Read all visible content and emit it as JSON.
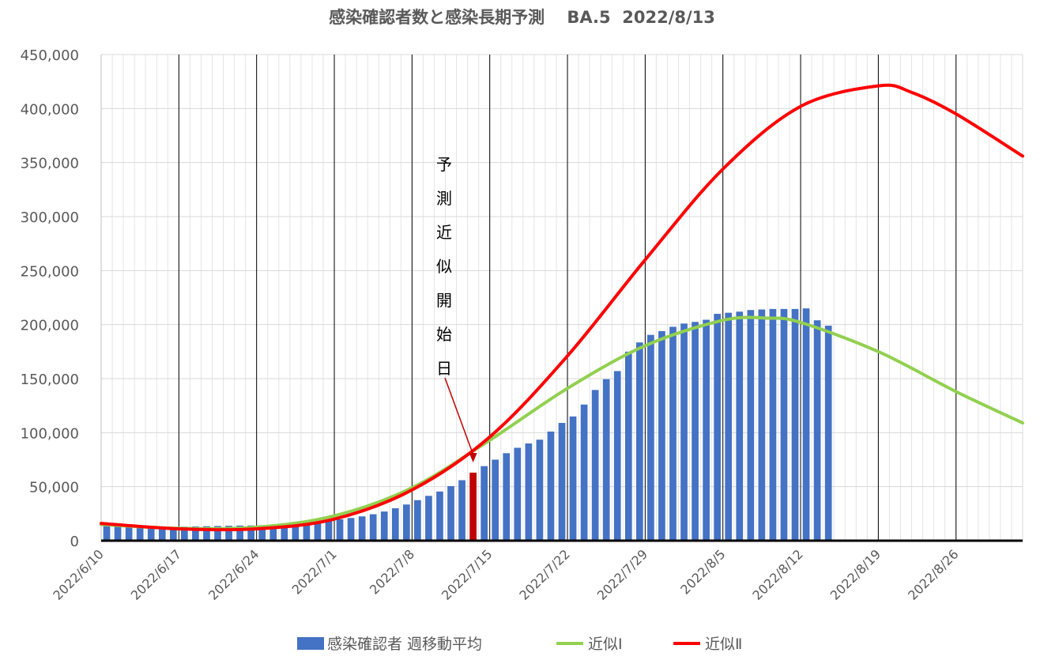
{
  "chart_data": {
    "type": "bar",
    "title": "感染確認者数と感染長期予測　 BA.5  2022/8/13",
    "xlabel": "",
    "ylabel": "",
    "ylim": [
      0,
      450000
    ],
    "y_ticks": [
      0,
      50000,
      100000,
      150000,
      200000,
      250000,
      300000,
      350000,
      400000,
      450000
    ],
    "x_start_date": "2022/6/10",
    "x_end_date": "2022/8/31",
    "x_tick_labels": [
      "2022/6/10",
      "2022/6/17",
      "2022/6/24",
      "2022/7/1",
      "2022/7/8",
      "2022/7/15",
      "2022/7/22",
      "2022/7/29",
      "2022/8/5",
      "2022/8/12",
      "2022/8/19",
      "2022/8/26"
    ],
    "grid": "on",
    "legend_position": "bottom",
    "annotation": {
      "text": "予測近似開始日",
      "date": "2022/7/13"
    },
    "colors": {
      "bars": "#4472C4",
      "highlight_bar": "#C00000",
      "approx1": "#92D050",
      "approx2": "#FF0000"
    },
    "series": [
      {
        "name": "感染確認者 週移動平均",
        "type": "bar",
        "highlight_date": "2022/7/13",
        "points": [
          [
            "2022/6/10",
            13500
          ],
          [
            "2022/6/11",
            13300
          ],
          [
            "2022/6/12",
            13000
          ],
          [
            "2022/6/13",
            12800
          ],
          [
            "2022/6/14",
            12600
          ],
          [
            "2022/6/15",
            12500
          ],
          [
            "2022/6/16",
            12700
          ],
          [
            "2022/6/17",
            13000
          ],
          [
            "2022/6/18",
            13200
          ],
          [
            "2022/6/19",
            13400
          ],
          [
            "2022/6/20",
            13600
          ],
          [
            "2022/6/21",
            13800
          ],
          [
            "2022/6/22",
            14000
          ],
          [
            "2022/6/23",
            14100
          ],
          [
            "2022/6/24",
            14300
          ],
          [
            "2022/6/25",
            14700
          ],
          [
            "2022/6/26",
            15200
          ],
          [
            "2022/6/27",
            15800
          ],
          [
            "2022/6/28",
            16500
          ],
          [
            "2022/6/29",
            17300
          ],
          [
            "2022/6/30",
            18400
          ],
          [
            "2022/7/1",
            19800
          ],
          [
            "2022/7/2",
            21000
          ],
          [
            "2022/7/3",
            22500
          ],
          [
            "2022/7/4",
            24500
          ],
          [
            "2022/7/5",
            27000
          ],
          [
            "2022/7/6",
            30000
          ],
          [
            "2022/7/7",
            33500
          ],
          [
            "2022/7/8",
            37500
          ],
          [
            "2022/7/9",
            41500
          ],
          [
            "2022/7/10",
            45500
          ],
          [
            "2022/7/11",
            50500
          ],
          [
            "2022/7/12",
            56000
          ],
          [
            "2022/7/13",
            63000
          ],
          [
            "2022/7/14",
            69000
          ],
          [
            "2022/7/15",
            75000
          ],
          [
            "2022/7/16",
            81000
          ],
          [
            "2022/7/17",
            86000
          ],
          [
            "2022/7/18",
            90000
          ],
          [
            "2022/7/19",
            93500
          ],
          [
            "2022/7/20",
            101000
          ],
          [
            "2022/7/21",
            109000
          ],
          [
            "2022/7/22",
            115000
          ],
          [
            "2022/7/23",
            126000
          ],
          [
            "2022/7/24",
            139500
          ],
          [
            "2022/7/25",
            149500
          ],
          [
            "2022/7/26",
            157000
          ],
          [
            "2022/7/27",
            175000
          ],
          [
            "2022/7/28",
            183500
          ],
          [
            "2022/7/29",
            190500
          ],
          [
            "2022/7/30",
            194000
          ],
          [
            "2022/7/31",
            198000
          ],
          [
            "2022/8/1",
            201000
          ],
          [
            "2022/8/2",
            202500
          ],
          [
            "2022/8/3",
            204500
          ],
          [
            "2022/8/4",
            210000
          ],
          [
            "2022/8/5",
            211000
          ],
          [
            "2022/8/6",
            212000
          ],
          [
            "2022/8/7",
            213500
          ],
          [
            "2022/8/8",
            214000
          ],
          [
            "2022/8/9",
            214500
          ],
          [
            "2022/8/10",
            214500
          ],
          [
            "2022/8/11",
            214500
          ],
          [
            "2022/8/12",
            215000
          ],
          [
            "2022/8/13",
            204000
          ],
          [
            "2022/8/14",
            199000
          ]
        ]
      },
      {
        "name": "近似Ⅰ",
        "type": "line",
        "points": [
          [
            "2022/6/10",
            15000
          ],
          [
            "2022/6/17",
            11500
          ],
          [
            "2022/6/24",
            12500
          ],
          [
            "2022/7/1",
            23000
          ],
          [
            "2022/7/8",
            49000
          ],
          [
            "2022/7/15",
            93000
          ],
          [
            "2022/7/22",
            141000
          ],
          [
            "2022/7/29",
            180500
          ],
          [
            "2022/8/5",
            204000
          ],
          [
            "2022/8/9",
            206000
          ],
          [
            "2022/8/12",
            202000
          ],
          [
            "2022/8/19",
            175000
          ],
          [
            "2022/8/26",
            138000
          ],
          [
            "2022/8/31",
            109000
          ]
        ]
      },
      {
        "name": "近似Ⅱ",
        "type": "line",
        "points": [
          [
            "2022/6/10",
            16000
          ],
          [
            "2022/6/17",
            11000
          ],
          [
            "2022/6/24",
            11000
          ],
          [
            "2022/7/1",
            20000
          ],
          [
            "2022/7/8",
            47000
          ],
          [
            "2022/7/15",
            96000
          ],
          [
            "2022/7/22",
            171000
          ],
          [
            "2022/7/29",
            260000
          ],
          [
            "2022/8/5",
            344000
          ],
          [
            "2022/8/12",
            402000
          ],
          [
            "2022/8/19",
            421000
          ],
          [
            "2022/8/22",
            415000
          ],
          [
            "2022/8/26",
            395000
          ],
          [
            "2022/8/31",
            356000
          ]
        ]
      }
    ]
  }
}
